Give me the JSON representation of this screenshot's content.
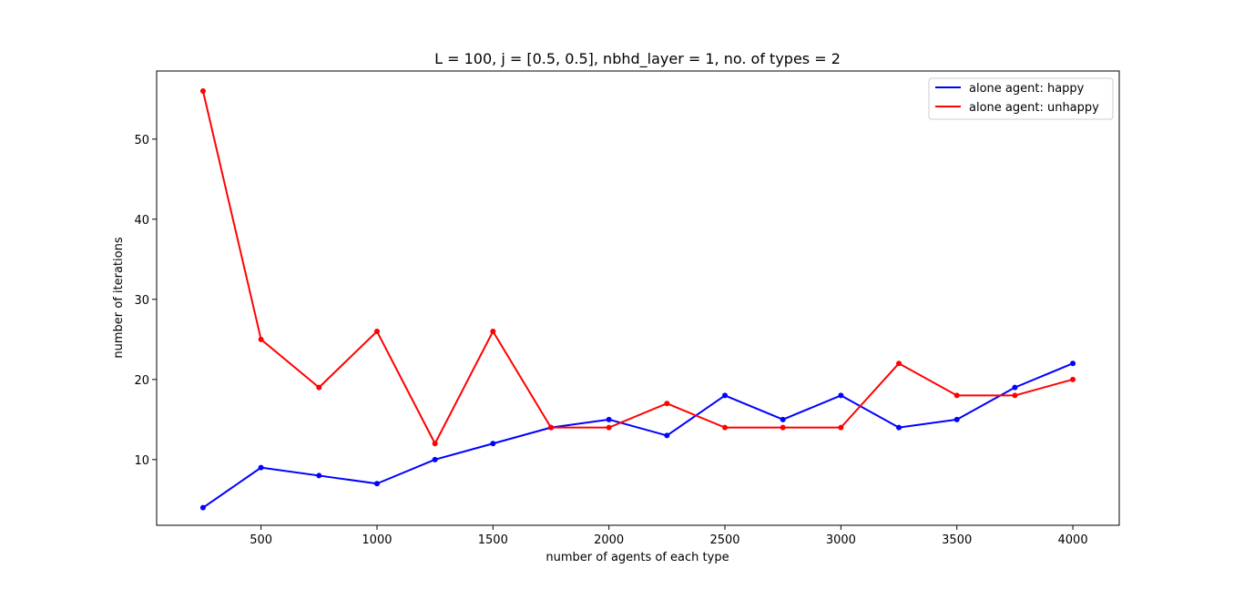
{
  "chart_data": {
    "type": "line",
    "title": "L = 100, j = [0.5, 0.5], nbhd_layer = 1, no. of types = 2",
    "xlabel": "number of agents of each type",
    "ylabel": "number of iterations",
    "xlim": [
      50,
      4200
    ],
    "ylim": [
      1.8,
      58.5
    ],
    "xticks": [
      500,
      1000,
      1500,
      2000,
      2500,
      3000,
      3500,
      4000
    ],
    "yticks": [
      10,
      20,
      30,
      40,
      50
    ],
    "x": [
      250,
      500,
      750,
      1000,
      1250,
      1500,
      1750,
      2000,
      2250,
      2500,
      2750,
      3000,
      3250,
      3500,
      3750,
      4000
    ],
    "series": [
      {
        "name": "alone agent: happy",
        "color": "#0000ff",
        "values": [
          4,
          9,
          8,
          7,
          10,
          12,
          14,
          15,
          13,
          18,
          15,
          18,
          14,
          15,
          19,
          22
        ]
      },
      {
        "name": "alone agent: unhappy",
        "color": "#ff0000",
        "values": [
          56,
          25,
          19,
          26,
          12,
          26,
          14,
          14,
          17,
          14,
          14,
          14,
          22,
          18,
          18,
          20
        ]
      }
    ],
    "grid": false,
    "legend_position": "top-right",
    "marker": "dot"
  }
}
